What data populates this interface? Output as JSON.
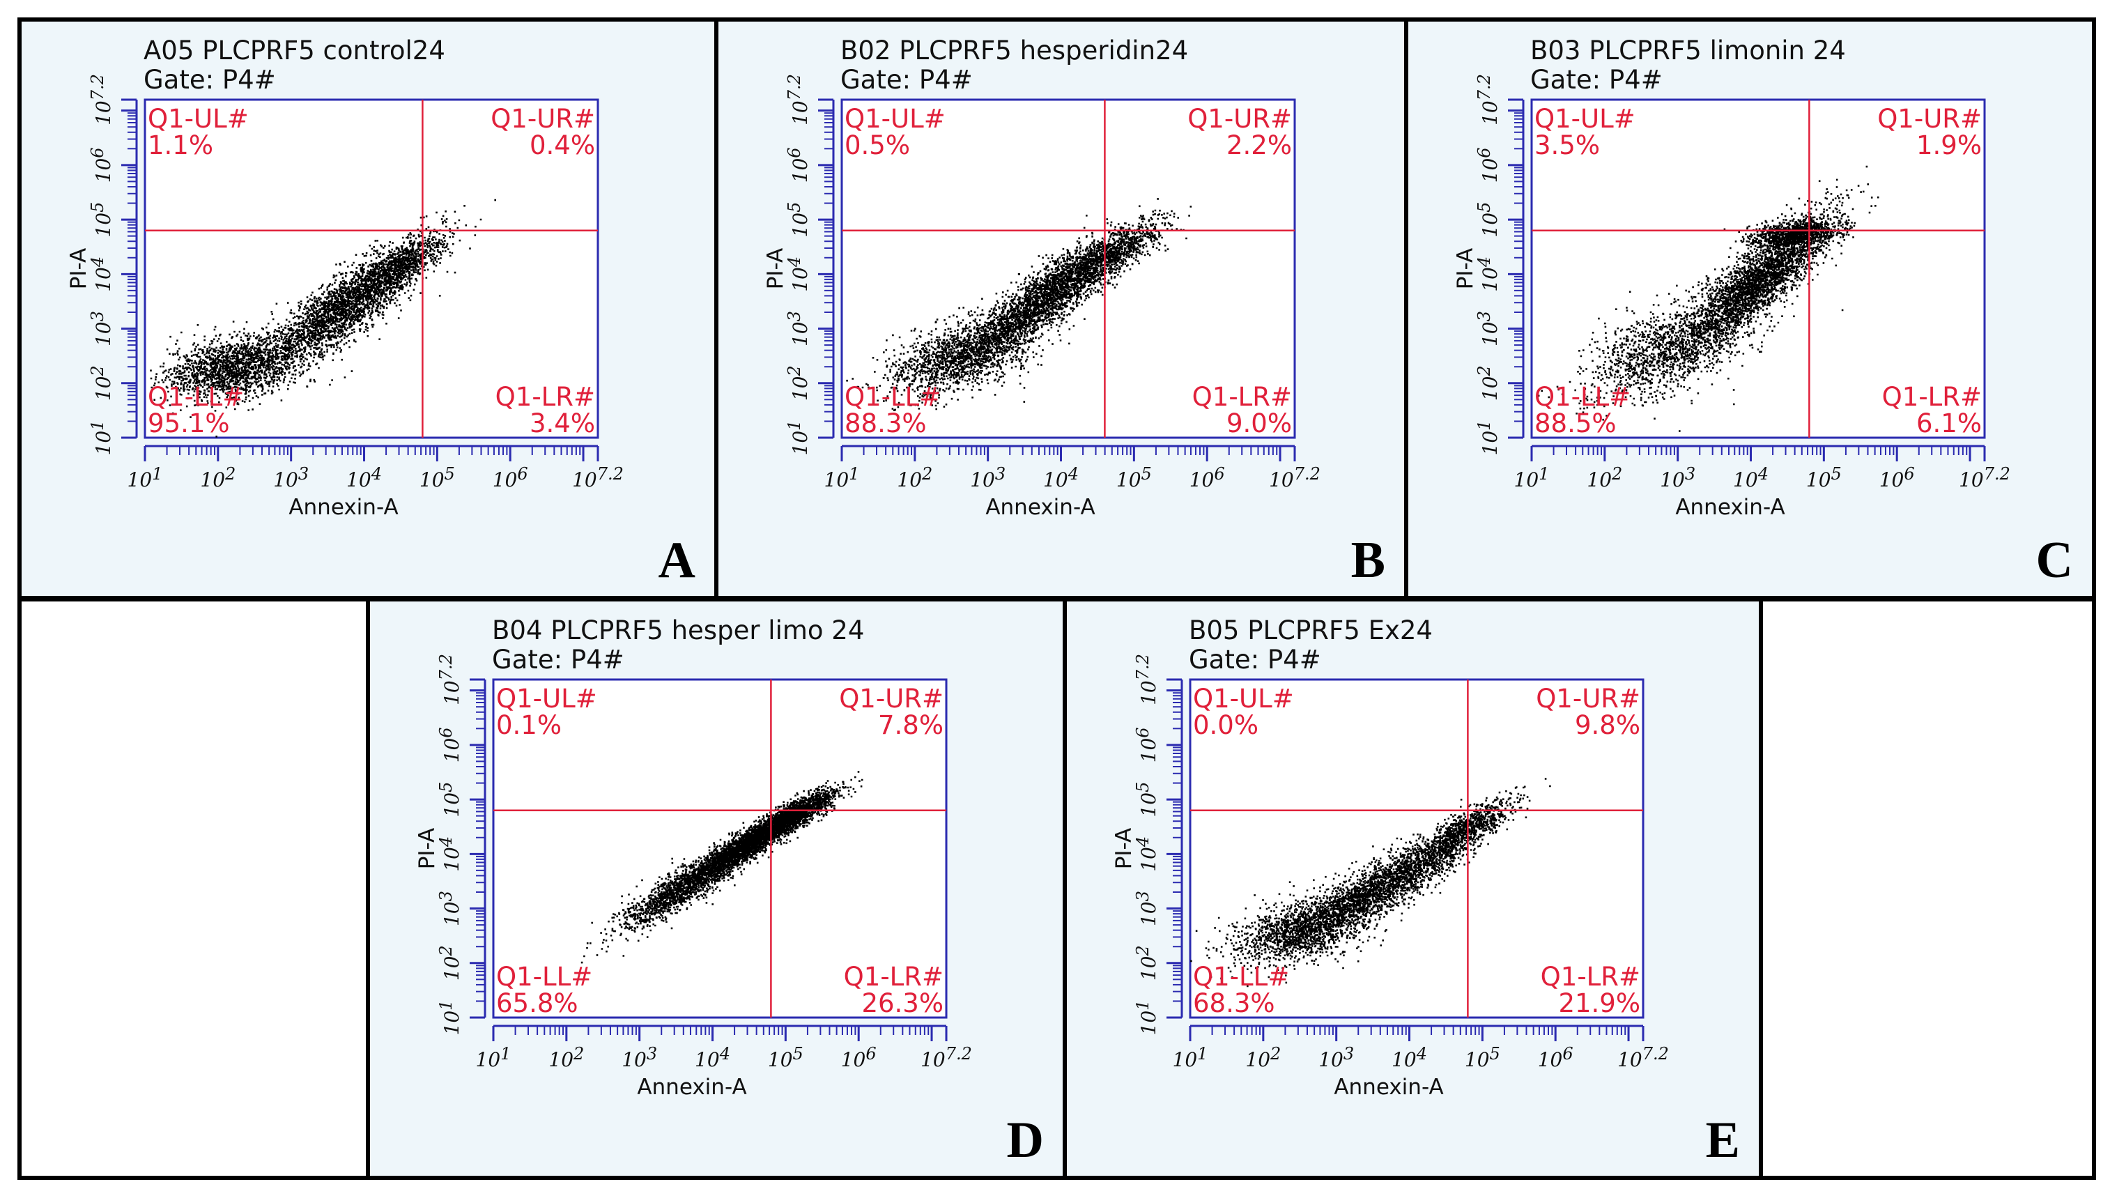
{
  "chart_data": [
    {
      "type": "scatter",
      "panel_letter": "A",
      "title": "A05 PLCPRF5 control24",
      "gate": "Gate: P4#",
      "xlabel": "Annexin-A",
      "ylabel": "PI-A",
      "xlim": [
        1,
        7.2
      ],
      "ylim": [
        1,
        7.2
      ],
      "x_ticks": [
        "10^1",
        "10^2",
        "10^3",
        "10^4",
        "10^5",
        "10^6",
        "10^7.2"
      ],
      "y_ticks": [
        "10^1",
        "10^2",
        "10^3",
        "10^4",
        "10^5",
        "10^6",
        "10^7.2"
      ],
      "gate_x": 4.8,
      "gate_y": 4.8,
      "quadrants": [
        {
          "name": "Q1-UL#",
          "value": "1.1%"
        },
        {
          "name": "Q1-UR#",
          "value": "0.4%"
        },
        {
          "name": "Q1-LL#",
          "value": "95.1%"
        },
        {
          "name": "Q1-LR#",
          "value": "3.4%"
        }
      ],
      "population": [
        {
          "x": 2.2,
          "y": 2.3,
          "sx": 0.45,
          "sy": 0.28,
          "rho": 0.3,
          "n": 1700
        },
        {
          "x": 3.7,
          "y": 3.4,
          "sx": 0.55,
          "sy": 0.55,
          "rho": 0.85,
          "n": 2600
        },
        {
          "x": 4.5,
          "y": 4.2,
          "sx": 0.3,
          "sy": 0.3,
          "rho": 0.8,
          "n": 700
        }
      ]
    },
    {
      "type": "scatter",
      "panel_letter": "B",
      "title": "B02 PLCPRF5 hesperidin24",
      "gate": "Gate: P4#",
      "xlabel": "Annexin-A",
      "ylabel": "PI-A",
      "xlim": [
        1,
        7.2
      ],
      "ylim": [
        1,
        7.2
      ],
      "x_ticks": [
        "10^1",
        "10^2",
        "10^3",
        "10^4",
        "10^5",
        "10^6",
        "10^7.2"
      ],
      "y_ticks": [
        "10^1",
        "10^2",
        "10^3",
        "10^4",
        "10^5",
        "10^6",
        "10^7.2"
      ],
      "gate_x": 4.6,
      "gate_y": 4.8,
      "quadrants": [
        {
          "name": "Q1-UL#",
          "value": "0.5%"
        },
        {
          "name": "Q1-UR#",
          "value": "2.2%"
        },
        {
          "name": "Q1-LL#",
          "value": "88.3%"
        },
        {
          "name": "Q1-LR#",
          "value": "9.0%"
        }
      ],
      "population": [
        {
          "x": 2.6,
          "y": 2.5,
          "sx": 0.5,
          "sy": 0.35,
          "rho": 0.5,
          "n": 1500
        },
        {
          "x": 3.8,
          "y": 3.6,
          "sx": 0.55,
          "sy": 0.55,
          "rho": 0.88,
          "n": 2700
        },
        {
          "x": 4.7,
          "y": 4.4,
          "sx": 0.35,
          "sy": 0.3,
          "rho": 0.8,
          "n": 800
        }
      ]
    },
    {
      "type": "scatter",
      "panel_letter": "C",
      "title": "B03 PLCPRF5 limonin 24",
      "gate": "Gate: P4#",
      "xlabel": "Annexin-A",
      "ylabel": "PI-A",
      "xlim": [
        1,
        7.2
      ],
      "ylim": [
        1,
        7.2
      ],
      "x_ticks": [
        "10^1",
        "10^2",
        "10^3",
        "10^4",
        "10^5",
        "10^6",
        "10^7.2"
      ],
      "y_ticks": [
        "10^1",
        "10^2",
        "10^3",
        "10^4",
        "10^5",
        "10^6",
        "10^7.2"
      ],
      "gate_x": 4.8,
      "gate_y": 4.8,
      "quadrants": [
        {
          "name": "Q1-UL#",
          "value": "3.5%"
        },
        {
          "name": "Q1-UR#",
          "value": "1.9%"
        },
        {
          "name": "Q1-LL#",
          "value": "88.5%"
        },
        {
          "name": "Q1-LR#",
          "value": "6.1%"
        }
      ],
      "population": [
        {
          "x": 2.8,
          "y": 2.6,
          "sx": 0.55,
          "sy": 0.45,
          "rho": 0.5,
          "n": 1300
        },
        {
          "x": 4.1,
          "y": 3.9,
          "sx": 0.5,
          "sy": 0.6,
          "rho": 0.85,
          "n": 3000
        },
        {
          "x": 4.6,
          "y": 4.75,
          "sx": 0.3,
          "sy": 0.12,
          "rho": 0.3,
          "n": 900
        }
      ]
    },
    {
      "type": "scatter",
      "panel_letter": "D",
      "title": "B04 PLCPRF5 hesper limo 24",
      "gate": "Gate: P4#",
      "xlabel": "Annexin-A",
      "ylabel": "PI-A",
      "xlim": [
        1,
        7.2
      ],
      "ylim": [
        1,
        7.2
      ],
      "x_ticks": [
        "10^1",
        "10^2",
        "10^3",
        "10^4",
        "10^5",
        "10^6",
        "10^7.2"
      ],
      "y_ticks": [
        "10^1",
        "10^2",
        "10^3",
        "10^4",
        "10^5",
        "10^6",
        "10^7.2"
      ],
      "gate_x": 4.8,
      "gate_y": 4.8,
      "quadrants": [
        {
          "name": "Q1-UL#",
          "value": "0.1%"
        },
        {
          "name": "Q1-UR#",
          "value": "7.8%"
        },
        {
          "name": "Q1-LL#",
          "value": "65.8%"
        },
        {
          "name": "Q1-LR#",
          "value": "26.3%"
        }
      ],
      "population": [
        {
          "x": 3.6,
          "y": 3.4,
          "sx": 0.45,
          "sy": 0.4,
          "rho": 0.9,
          "n": 1600
        },
        {
          "x": 4.6,
          "y": 4.3,
          "sx": 0.4,
          "sy": 0.35,
          "rho": 0.92,
          "n": 2800
        },
        {
          "x": 5.2,
          "y": 4.8,
          "sx": 0.25,
          "sy": 0.2,
          "rho": 0.8,
          "n": 900
        }
      ]
    },
    {
      "type": "scatter",
      "panel_letter": "E",
      "title": "B05 PLCPRF5 Ex24",
      "gate": "Gate: P4#",
      "xlabel": "Annexin-A",
      "ylabel": "PI-A",
      "xlim": [
        1,
        7.2
      ],
      "ylim": [
        1,
        7.2
      ],
      "x_ticks": [
        "10^1",
        "10^2",
        "10^3",
        "10^4",
        "10^5",
        "10^6",
        "10^7.2"
      ],
      "y_ticks": [
        "10^1",
        "10^2",
        "10^3",
        "10^4",
        "10^5",
        "10^6",
        "10^7.2"
      ],
      "gate_x": 4.8,
      "gate_y": 4.8,
      "quadrants": [
        {
          "name": "Q1-UL#",
          "value": "0.0%"
        },
        {
          "name": "Q1-UR#",
          "value": "9.8%"
        },
        {
          "name": "Q1-LL#",
          "value": "68.3%"
        },
        {
          "name": "Q1-LR#",
          "value": "21.9%"
        }
      ],
      "population": [
        {
          "x": 2.5,
          "y": 2.6,
          "sx": 0.45,
          "sy": 0.3,
          "rho": 0.4,
          "n": 1400
        },
        {
          "x": 3.6,
          "y": 3.4,
          "sx": 0.55,
          "sy": 0.45,
          "rho": 0.85,
          "n": 2200
        },
        {
          "x": 4.7,
          "y": 4.4,
          "sx": 0.35,
          "sy": 0.3,
          "rho": 0.85,
          "n": 1000
        }
      ]
    }
  ]
}
